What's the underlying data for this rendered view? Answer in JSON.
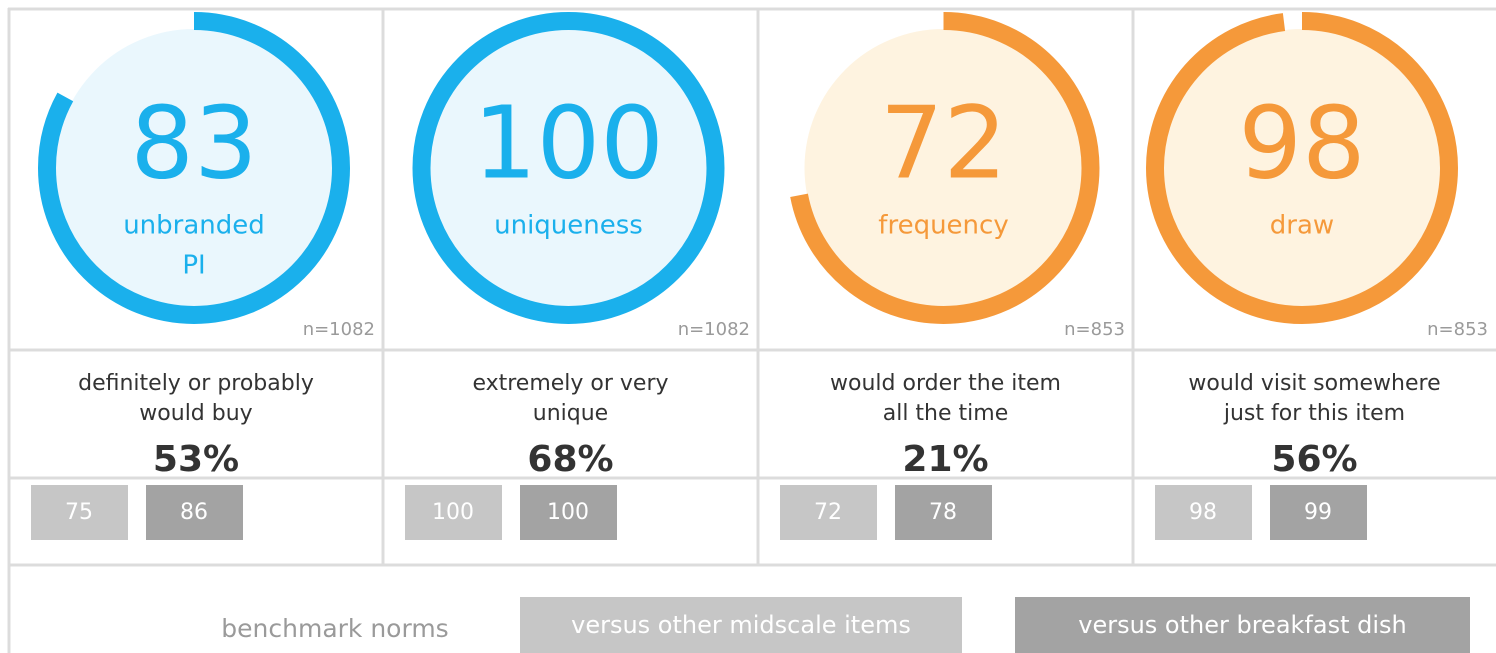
{
  "gauge_range": [
    0,
    100
  ],
  "cards": [
    {
      "score": 83,
      "label": [
        "unbranded",
        "PI"
      ],
      "n": "n=1082",
      "description": [
        "definitely or probably",
        "would buy"
      ],
      "percent": "53%",
      "norms": [
        75,
        86
      ],
      "color": "#1ab0ec",
      "fill": "#eaf7fd"
    },
    {
      "score": 100,
      "label": [
        "uniqueness"
      ],
      "n": "n=1082",
      "description": [
        "extremely or very",
        "unique"
      ],
      "percent": "68%",
      "norms": [
        100,
        100
      ],
      "color": "#1ab0ec",
      "fill": "#eaf7fd"
    },
    {
      "score": 72,
      "label": [
        "frequency"
      ],
      "n": "n=853",
      "description": [
        "would order the item",
        "all the time"
      ],
      "percent": "21%",
      "norms": [
        72,
        78
      ],
      "color": "#f5993a",
      "fill": "#fef3e0"
    },
    {
      "score": 98,
      "label": [
        "draw"
      ],
      "n": "n=853",
      "description": [
        "would visit somewhere",
        "just for this item"
      ],
      "percent": "56%",
      "norms": [
        98,
        99
      ],
      "color": "#f5993a",
      "fill": "#fef3e0"
    }
  ],
  "legend": {
    "title": "benchmark norms",
    "entries": [
      {
        "name": "versus other midscale items",
        "color": "#c6c6c6"
      },
      {
        "name": "versus other breakfast dish",
        "color": "#a3a3a3"
      }
    ]
  }
}
